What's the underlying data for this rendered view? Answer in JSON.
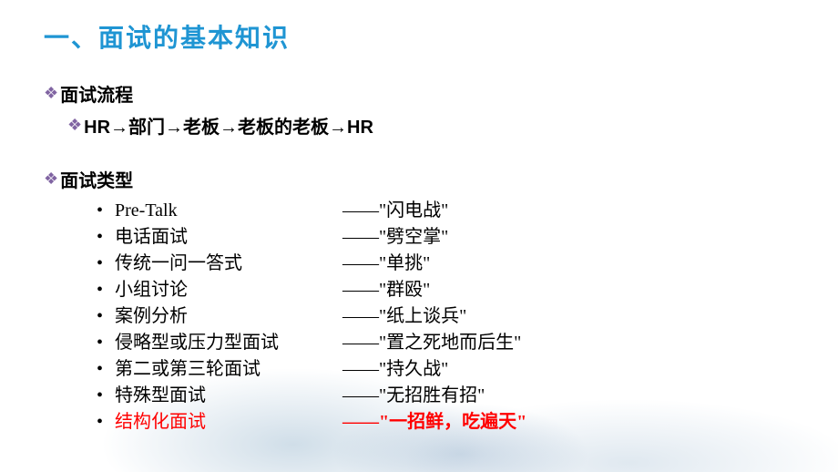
{
  "title": "一、面试的基本知识",
  "colors": {
    "title": "#1f95d3",
    "diamond": "#8064a2",
    "highlight": "#ff0000",
    "text": "#000000",
    "background": "#ffffff"
  },
  "typography": {
    "title_fontsize": 28,
    "section_fontsize": 20,
    "item_fontsize": 20
  },
  "sections": {
    "process": {
      "label": "面试流程",
      "flow": "HR→部门→老板→老板的老板→HR"
    },
    "types": {
      "label": "面试类型",
      "items": [
        {
          "name": "Pre-Talk",
          "nickname": "——\"闪电战\"",
          "highlight": false
        },
        {
          "name": "电话面试",
          "nickname": "——\"劈空掌\"",
          "highlight": false
        },
        {
          "name": "传统一问一答式",
          "nickname": "——\"单挑\"",
          "highlight": false
        },
        {
          "name": "小组讨论",
          "nickname": "——\"群殴\"",
          "highlight": false
        },
        {
          "name": "案例分析",
          "nickname": "——\"纸上谈兵\"",
          "highlight": false
        },
        {
          "name": "侵略型或压力型面试",
          "nickname": "——\"置之死地而后生\"",
          "highlight": false
        },
        {
          "name": "第二或第三轮面试",
          "nickname": "——\"持久战\"",
          "highlight": false
        },
        {
          "name": "特殊型面试",
          "nickname": "——\"无招胜有招\"",
          "highlight": false
        },
        {
          "name": "结构化面试",
          "nickname": "——\"一招鲜，吃遍天\"",
          "highlight": true
        }
      ]
    }
  }
}
